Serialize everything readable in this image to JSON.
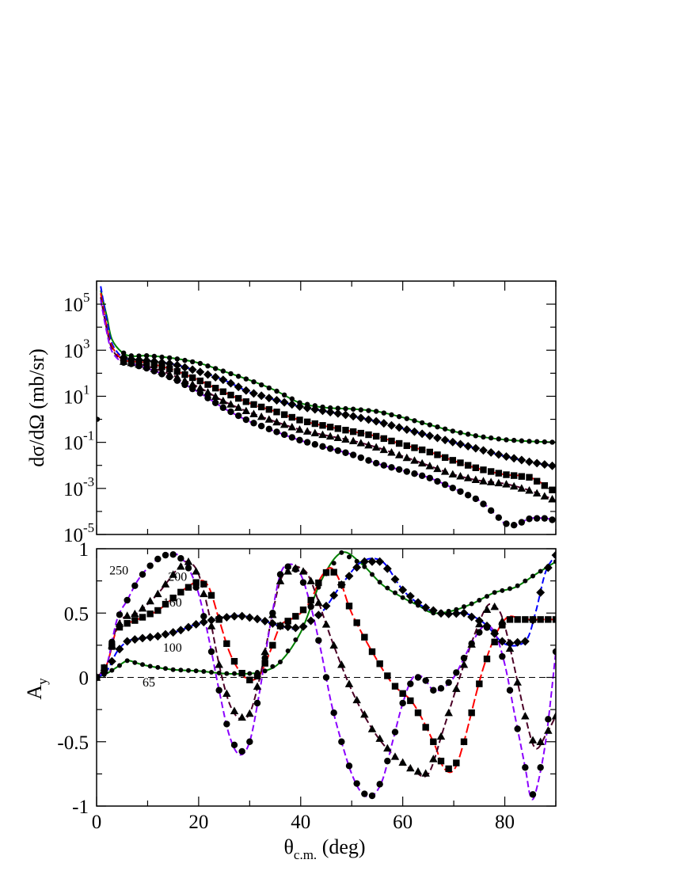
{
  "chart_data": [
    {
      "type": "line",
      "panel": "top",
      "ylabel": "dσ/dΩ (mb/sr)",
      "yscale": "log",
      "ylim": [
        1e-05,
        1000000
      ],
      "xlim": [
        0,
        90
      ],
      "yticks": [
        {
          "base": "10",
          "exp": "5",
          "value": 100000
        },
        {
          "base": "10",
          "exp": "3",
          "value": 1000
        },
        {
          "base": "10",
          "exp": "1",
          "value": 10
        },
        {
          "base": "10",
          "exp": "-1",
          "value": 0.1
        },
        {
          "base": "10",
          "exp": "-3",
          "value": 0.001
        },
        {
          "base": "10",
          "exp": "-5",
          "value": 1e-05
        }
      ],
      "series": [
        {
          "color": "#008000",
          "dash": "solid",
          "marker": "circle",
          "small": true,
          "x": [
            0.8,
            2,
            3,
            5,
            7,
            10,
            15,
            20,
            25,
            30,
            35,
            40,
            45,
            50,
            55,
            60,
            65,
            70,
            75,
            80,
            85,
            90
          ],
          "y": [
            400000,
            30000,
            3000,
            800,
            550,
            580,
            450,
            280,
            120,
            50,
            18,
            5,
            3.2,
            2.8,
            2.2,
            1.2,
            0.6,
            0.3,
            0.18,
            0.13,
            0.11,
            0.1
          ]
        },
        {
          "color": "#0000ff",
          "dash": "8,4",
          "marker": "diamond",
          "x": [
            0.8,
            2,
            3,
            5,
            7,
            10,
            15,
            20,
            25,
            30,
            35,
            40,
            45,
            50,
            55,
            60,
            65,
            70,
            75,
            80,
            85,
            90
          ],
          "y": [
            600000,
            20000,
            2000,
            500,
            400,
            350,
            250,
            120,
            50,
            15,
            7,
            3.5,
            2.2,
            1.4,
            0.8,
            0.4,
            0.2,
            0.1,
            0.05,
            0.025,
            0.014,
            0.009
          ]
        },
        {
          "color": "#ff0000",
          "dash": "12,4",
          "marker": "square",
          "x": [
            0.8,
            2,
            3,
            5,
            7,
            10,
            15,
            20,
            25,
            30,
            35,
            40,
            45,
            50,
            55,
            60,
            65,
            70,
            75,
            80,
            85,
            90
          ],
          "y": [
            300000,
            10000,
            1500,
            400,
            330,
            280,
            140,
            50,
            15,
            5,
            2.2,
            0.9,
            0.5,
            0.3,
            0.18,
            0.08,
            0.04,
            0.016,
            0.007,
            0.004,
            0.003,
            0.0007
          ]
        },
        {
          "color": "#4b0026",
          "dash": "8,4",
          "marker": "triangle",
          "x": [
            0.8,
            2,
            3,
            5,
            7,
            10,
            15,
            20,
            25,
            30,
            35,
            40,
            45,
            50,
            55,
            60,
            65,
            70,
            75,
            80,
            85,
            90
          ],
          "y": [
            200000,
            8000,
            1200,
            330,
            280,
            200,
            80,
            25,
            6,
            2,
            0.8,
            0.35,
            0.2,
            0.12,
            0.06,
            0.025,
            0.01,
            0.004,
            0.0022,
            0.0016,
            0.0008,
            0.0003
          ]
        },
        {
          "color": "#8b00ff",
          "dash": "8,4",
          "marker": "circle",
          "x": [
            0.8,
            2,
            3,
            5,
            7,
            10,
            15,
            20,
            25,
            30,
            35,
            40,
            45,
            50,
            55,
            60,
            65,
            70,
            75,
            78,
            80,
            82,
            85,
            88,
            90
          ],
          "y": [
            150000,
            6000,
            900,
            300,
            250,
            160,
            60,
            15,
            3,
            0.8,
            0.3,
            0.12,
            0.06,
            0.03,
            0.012,
            0.006,
            0.003,
            0.001,
            0.0003,
            8e-05,
            3e-05,
            2.5e-05,
            5e-05,
            5e-05,
            4e-05
          ]
        }
      ]
    },
    {
      "type": "line",
      "panel": "bottom",
      "xlabel_main": "θ",
      "xlabel_sub": "c.m.",
      "xlabel_unit": " (deg)",
      "ylabel_main": "A",
      "ylabel_sub": "y",
      "ylim": [
        -1,
        1
      ],
      "xlim": [
        0,
        90
      ],
      "xticks": [
        "0",
        "20",
        "40",
        "60",
        "80"
      ],
      "yticks": [
        "-1",
        "-0.5",
        "0",
        "0.5",
        "1"
      ],
      "curve_labels": [
        {
          "text": "250",
          "x": 2.5,
          "y": 0.8
        },
        {
          "text": "200",
          "x": 14,
          "y": 0.75
        },
        {
          "text": "160",
          "x": 13,
          "y": 0.55
        },
        {
          "text": "100",
          "x": 13,
          "y": 0.2
        },
        {
          "text": "65",
          "x": 9,
          "y": -0.07
        }
      ],
      "series": [
        {
          "name_label": "65",
          "color": "#008000",
          "dash": "solid",
          "marker": "circle",
          "small": true,
          "x": [
            0,
            2,
            4,
            6,
            8,
            10,
            15,
            20,
            25,
            30,
            33,
            36,
            40,
            44,
            48,
            52,
            56,
            60,
            63,
            66,
            70,
            74,
            78,
            82,
            86,
            90
          ],
          "y": [
            0,
            0.03,
            0.08,
            0.13,
            0.11,
            0.09,
            0.06,
            0.05,
            0.03,
            0.03,
            0.05,
            0.12,
            0.35,
            0.75,
            0.97,
            0.88,
            0.72,
            0.62,
            0.56,
            0.5,
            0.52,
            0.58,
            0.66,
            0.7,
            0.8,
            0.9
          ]
        },
        {
          "name_label": "100",
          "color": "#0000ff",
          "dash": "8,4",
          "marker": "diamond",
          "x": [
            0,
            2,
            4,
            6,
            8,
            12,
            16,
            20,
            24,
            28,
            32,
            36,
            40,
            44,
            48,
            52,
            56,
            60,
            64,
            68,
            72,
            76,
            80,
            84,
            86,
            88,
            90
          ],
          "y": [
            0,
            0.05,
            0.2,
            0.28,
            0.3,
            0.32,
            0.36,
            0.42,
            0.46,
            0.48,
            0.45,
            0.4,
            0.38,
            0.5,
            0.72,
            0.9,
            0.9,
            0.68,
            0.55,
            0.49,
            0.5,
            0.42,
            0.26,
            0.28,
            0.5,
            0.82,
            0.95
          ]
        },
        {
          "name_label": "160",
          "color": "#ff0000",
          "dash": "12,4",
          "marker": "square",
          "x": [
            0,
            2,
            4,
            6,
            8,
            12,
            16,
            20,
            22,
            24,
            26,
            28,
            30,
            32,
            34,
            36,
            38,
            40,
            42,
            44,
            46,
            48,
            50,
            54,
            58,
            62,
            66,
            68,
            70,
            72,
            76,
            80,
            84,
            90
          ],
          "y": [
            0,
            0.1,
            0.38,
            0.42,
            0.45,
            0.52,
            0.65,
            0.75,
            0.7,
            0.45,
            0.2,
            0.05,
            -0.02,
            0.02,
            0.2,
            0.4,
            0.45,
            0.5,
            0.6,
            0.78,
            0.85,
            0.72,
            0.5,
            0.2,
            -0.05,
            -0.2,
            -0.5,
            -0.7,
            -0.72,
            -0.5,
            0.1,
            0.45,
            0.45,
            0.45
          ]
        },
        {
          "name_label": "200",
          "color": "#4b0026",
          "dash": "8,4",
          "marker": "triangle",
          "x": [
            0,
            2,
            4,
            6,
            8,
            12,
            16,
            18,
            20,
            22,
            24,
            26,
            28,
            30,
            32,
            34,
            36,
            38,
            40,
            42,
            46,
            50,
            54,
            58,
            62,
            65,
            68,
            72,
            76,
            78,
            80,
            84,
            86,
            88,
            90
          ],
          "y": [
            0,
            0.1,
            0.4,
            0.48,
            0.5,
            0.65,
            0.85,
            0.9,
            0.8,
            0.5,
            0.1,
            -0.2,
            -0.32,
            -0.28,
            0.0,
            0.4,
            0.75,
            0.85,
            0.85,
            0.75,
            0.3,
            -0.1,
            -0.4,
            -0.6,
            -0.72,
            -0.75,
            -0.4,
            0.1,
            0.52,
            0.55,
            0.4,
            -0.3,
            -0.55,
            -0.45,
            -0.3
          ]
        },
        {
          "name_label": "250",
          "color": "#8b00ff",
          "dash": "8,4",
          "marker": "circle",
          "x": [
            0,
            2,
            4,
            6,
            8,
            10,
            12,
            14,
            16,
            18,
            20,
            22,
            24,
            26,
            28,
            30,
            32,
            34,
            36,
            38,
            40,
            42,
            44,
            46,
            48,
            50,
            52,
            54,
            56,
            58,
            60,
            62,
            64,
            66,
            68,
            70,
            72,
            74,
            76,
            78,
            80,
            82,
            84,
            85,
            86,
            88,
            90
          ],
          "y": [
            0,
            0.1,
            0.45,
            0.6,
            0.75,
            0.85,
            0.92,
            0.96,
            0.95,
            0.85,
            0.65,
            0.3,
            -0.1,
            -0.45,
            -0.6,
            -0.5,
            -0.1,
            0.4,
            0.8,
            0.88,
            0.8,
            0.55,
            0.2,
            -0.2,
            -0.5,
            -0.75,
            -0.9,
            -0.92,
            -0.8,
            -0.5,
            -0.2,
            0.0,
            0.0,
            -0.1,
            -0.08,
            0.0,
            0.15,
            0.3,
            0.4,
            0.35,
            0.1,
            -0.3,
            -0.7,
            -0.92,
            -0.9,
            -0.5,
            0.2
          ]
        }
      ]
    }
  ]
}
